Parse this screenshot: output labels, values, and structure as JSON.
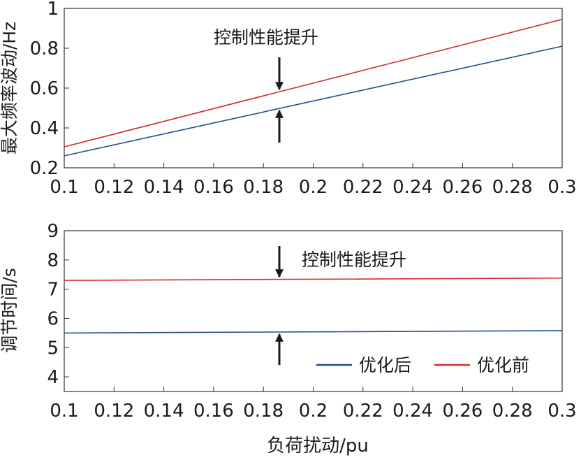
{
  "chart_data": [
    {
      "type": "line",
      "ylabel": "最大频率波动/Hz",
      "xlabel": "",
      "xlim": [
        0.1,
        0.3
      ],
      "ylim": [
        0.2,
        1.0
      ],
      "x_ticks": [
        "0.1",
        "0.12",
        "0.14",
        "0.16",
        "0.18",
        "0.2",
        "0.22",
        "0.24",
        "0.26",
        "0.28",
        "0.3"
      ],
      "y_ticks": [
        "0.2",
        "0.4",
        "0.6",
        "0.8",
        "1"
      ],
      "annotation": "控制性能提升",
      "series": [
        {
          "name": "优化后",
          "color": "#1f4e96",
          "x": [
            0.1,
            0.3
          ],
          "y": [
            0.26,
            0.81
          ]
        },
        {
          "name": "优化前",
          "color": "#d62b2b",
          "x": [
            0.1,
            0.3
          ],
          "y": [
            0.305,
            0.945
          ]
        }
      ],
      "grid": false,
      "legend": "none"
    },
    {
      "type": "line",
      "ylabel": "调节时间/s",
      "xlabel": "负荷扰动/pu",
      "xlim": [
        0.1,
        0.3
      ],
      "ylim": [
        3.5,
        9
      ],
      "x_ticks": [
        "0.1",
        "0.12",
        "0.14",
        "0.16",
        "0.18",
        "0.2",
        "0.22",
        "0.24",
        "0.26",
        "0.28",
        "0.3"
      ],
      "y_ticks": [
        "4",
        "5",
        "6",
        "7",
        "8",
        "9"
      ],
      "annotation": "控制性能提升",
      "series": [
        {
          "name": "优化后",
          "color": "#1f4e96",
          "x": [
            0.1,
            0.3
          ],
          "y": [
            5.5,
            5.58
          ]
        },
        {
          "name": "优化前",
          "color": "#d62b2b",
          "x": [
            0.1,
            0.3
          ],
          "y": [
            7.3,
            7.38
          ]
        }
      ],
      "grid": false,
      "legend": "bottom-right"
    }
  ]
}
